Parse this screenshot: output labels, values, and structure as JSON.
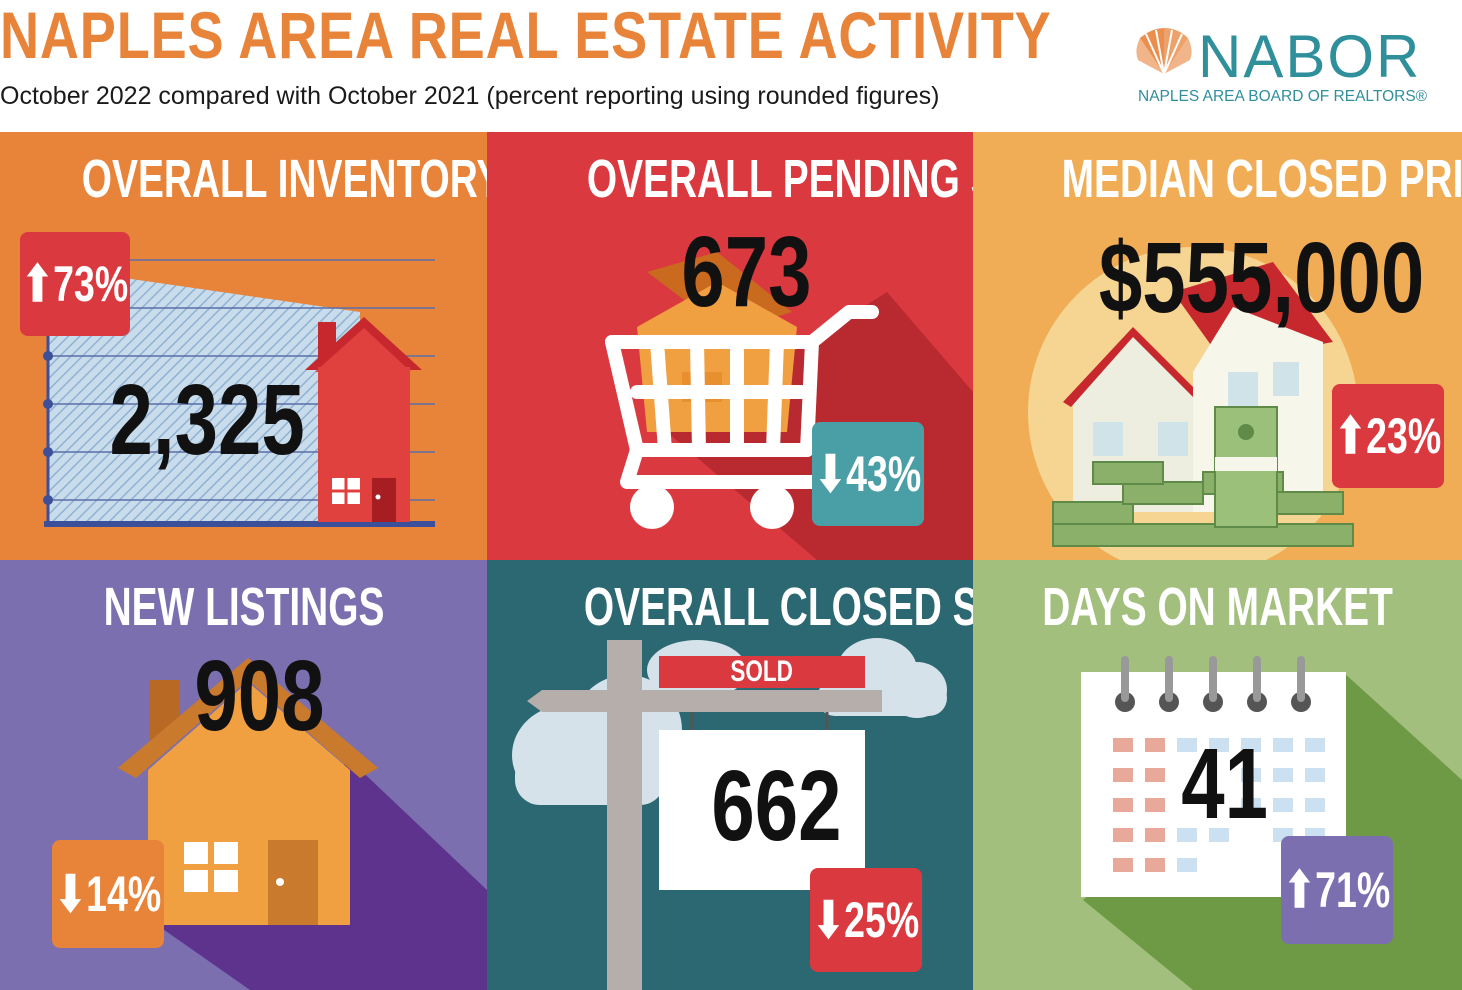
{
  "header": {
    "title": "NAPLES AREA REAL ESTATE ACTIVITY",
    "subtitle": "October 2022 compared with October 2021 (percent reporting using rounded figures)"
  },
  "logo": {
    "name": "NABOR",
    "tagline": "NAPLES AREA BOARD OF REALTORS®",
    "icon": "shell-icon"
  },
  "panels": {
    "inventory": {
      "title": "OVERALL INVENTORY",
      "value": "2,325",
      "change": "⬆73%",
      "color": "#e8833a"
    },
    "pending": {
      "title": "OVERALL PENDING SALES",
      "value": "673",
      "change": "⬇43%",
      "color": "#d9393f"
    },
    "median": {
      "title": "MEDIAN CLOSED PRICE",
      "value": "$555,000",
      "change": "⬆23%",
      "color": "#f0ad55"
    },
    "listings": {
      "title": "NEW LISTINGS",
      "value": "908",
      "change": "⬇14%",
      "color": "#7b6fb0"
    },
    "closed": {
      "title": "OVERALL CLOSED SALES",
      "value": "662",
      "change": "⬇25%",
      "sign": "SOLD",
      "color": "#2c6872"
    },
    "days": {
      "title": "DAYS ON MARKET",
      "value": "41",
      "change": "⬆71%",
      "color": "#a3bf7e"
    }
  },
  "colors": {
    "badge_red": "#d9393f",
    "badge_teal": "#4a9ea5",
    "badge_orange": "#e8833a",
    "badge_purple": "#7b6fb0"
  }
}
